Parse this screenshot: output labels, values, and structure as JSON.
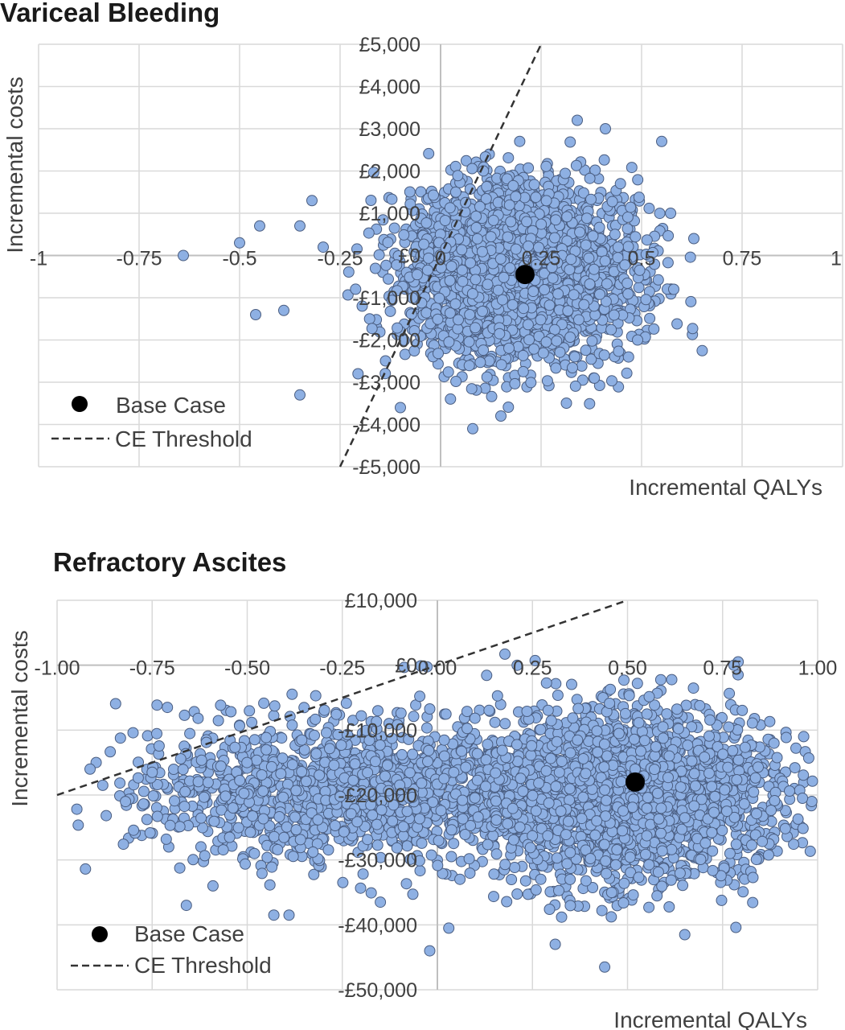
{
  "chart_data": [
    {
      "type": "scatter",
      "title": "Variceal Bleeding",
      "xlabel": "Incremental QALYs",
      "ylabel": "Incremental costs",
      "xlim": [
        -1,
        1
      ],
      "ylim": [
        -5000,
        5000
      ],
      "x_ticks": [
        -1,
        -0.75,
        -0.5,
        -0.25,
        0,
        0.25,
        0.5,
        0.75,
        1
      ],
      "x_tick_labels": [
        "-1",
        "-0.75",
        "-0.5",
        "-0.25",
        "0",
        "0.25",
        "0.5",
        "0.75",
        "1"
      ],
      "y_ticks": [
        5000,
        4000,
        3000,
        2000,
        1000,
        0,
        -1000,
        -2000,
        -3000,
        -4000,
        -5000
      ],
      "y_tick_labels": [
        "£5,000",
        "£4,000",
        "£3,000",
        "£2,000",
        "£1,000",
        "£0",
        "-£1,000",
        "-£2,000",
        "-£3,000",
        "-£4,000",
        "-£5,000"
      ],
      "grid": true,
      "legend_position": "bottom-left",
      "legend": [
        {
          "label": "Base Case",
          "marker": "filled-circle"
        },
        {
          "label": "CE Threshold",
          "marker": "dashed-line"
        }
      ],
      "base_case": {
        "x": 0.21,
        "y": -450
      },
      "threshold_line": {
        "x1": -0.25,
        "y1": -5000,
        "x2": 0.25,
        "y2": 5000
      },
      "cloud": {
        "x_mean": 0.19,
        "x_sd": 0.14,
        "y_mean": -350,
        "y_sd": 1000,
        "count": 3000
      },
      "outliers": [
        {
          "x": -0.64,
          "y": 0
        },
        {
          "x": -0.5,
          "y": 300
        },
        {
          "x": -0.45,
          "y": 700
        },
        {
          "x": -0.46,
          "y": -1400
        },
        {
          "x": -0.39,
          "y": -1300
        },
        {
          "x": -0.35,
          "y": -3300
        },
        {
          "x": -0.32,
          "y": 1300
        },
        {
          "x": -0.35,
          "y": 700
        },
        {
          "x": 0.34,
          "y": 3200
        },
        {
          "x": 0.41,
          "y": 3000
        },
        {
          "x": 0.55,
          "y": 2700
        },
        {
          "x": 0.63,
          "y": 400
        },
        {
          "x": 0.15,
          "y": -3800
        },
        {
          "x": 0.08,
          "y": -4100
        },
        {
          "x": 0.49,
          "y": -2000
        },
        {
          "x": 0.58,
          "y": -800
        },
        {
          "x": -0.1,
          "y": -3600
        }
      ],
      "colors": {
        "point_fill": "#8eb0e3",
        "point_stroke": "#4a5d80",
        "base_case": "#000000",
        "threshold": "#333333",
        "grid": "#d9d9d9",
        "axis": "#bfbfbf"
      }
    },
    {
      "type": "scatter",
      "title": "Refractory Ascites",
      "xlabel": "Incremental QALYs",
      "ylabel": "Incremental costs",
      "xlim": [
        -1,
        1
      ],
      "ylim": [
        -50000,
        10000
      ],
      "x_ticks": [
        -1,
        -0.75,
        -0.5,
        -0.25,
        0,
        0.25,
        0.5,
        0.75,
        1
      ],
      "x_tick_labels": [
        "-1.00",
        "-0.75",
        "-0.50",
        "-0.25",
        "0.00",
        "0.25",
        "0.50",
        "0.75",
        "1.00"
      ],
      "y_ticks": [
        10000,
        0,
        -10000,
        -20000,
        -30000,
        -40000,
        -50000
      ],
      "y_tick_labels": [
        "£10,000",
        "£0",
        "-£10,000",
        "-£20,000",
        "-£30,000",
        "-£40,000",
        "-£50,000"
      ],
      "grid": true,
      "legend_position": "bottom-left",
      "legend": [
        {
          "label": "Base Case",
          "marker": "filled-circle"
        },
        {
          "label": "CE Threshold",
          "marker": "dashed-line"
        }
      ],
      "base_case": {
        "x": 0.52,
        "y": -18000
      },
      "threshold_line": {
        "x1": -1,
        "y1": -20000,
        "x2": 0.5,
        "y2": 10000
      },
      "cloud": {
        "x_mean": 0.5,
        "x_sd": 0.2,
        "y_mean": -20000,
        "y_sd": 6500,
        "count": 2300
      },
      "cloud_secondary": {
        "x_mean": -0.25,
        "x_sd": 0.27,
        "y_mean": -19000,
        "y_sd": 5500,
        "count": 1300
      },
      "outliers": [
        {
          "x": -0.71,
          "y": -6500
        },
        {
          "x": -0.75,
          "y": -16500
        },
        {
          "x": -0.88,
          "y": -18500
        },
        {
          "x": -0.66,
          "y": -37000
        },
        {
          "x": -0.59,
          "y": -34000
        },
        {
          "x": -0.43,
          "y": -38500
        },
        {
          "x": -0.39,
          "y": -38500
        },
        {
          "x": -0.02,
          "y": -44000
        },
        {
          "x": 0.03,
          "y": -40500
        },
        {
          "x": 0.21,
          "y": 0
        },
        {
          "x": 0.78,
          "y": 0
        },
        {
          "x": 1.0,
          "y": -12500
        },
        {
          "x": 0.44,
          "y": -46500
        },
        {
          "x": 0.31,
          "y": -43000
        },
        {
          "x": -0.15,
          "y": -36500
        },
        {
          "x": 0.96,
          "y": -20500
        },
        {
          "x": -0.82,
          "y": -21000
        }
      ],
      "colors": {
        "point_fill": "#8eb0e3",
        "point_stroke": "#4a5d80",
        "base_case": "#000000",
        "threshold": "#333333",
        "grid": "#d9d9d9",
        "axis": "#bfbfbf"
      }
    }
  ]
}
